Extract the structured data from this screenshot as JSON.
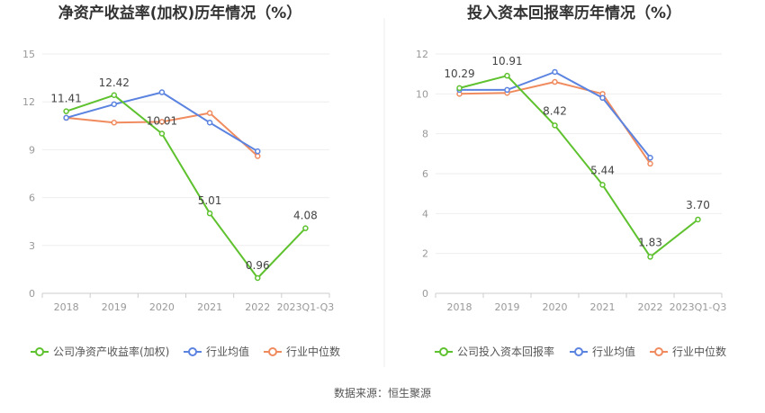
{
  "chart_data": [
    {
      "type": "line",
      "title": "净资产收益率(加权)历年情况（%）",
      "categories": [
        "2018",
        "2019",
        "2020",
        "2021",
        "2022",
        "2023Q1-Q3"
      ],
      "ylim": [
        0,
        15
      ],
      "yticks": [
        "0",
        "3",
        "6",
        "9",
        "12",
        "15"
      ],
      "series": [
        {
          "name": "公司净资产收益率(加权)",
          "color": "#5ec12e",
          "values": [
            11.41,
            12.42,
            10.01,
            5.01,
            0.96,
            4.08
          ],
          "labels": [
            "11.41",
            "12.42",
            "10.01",
            "5.01",
            "0.96",
            "4.08"
          ]
        },
        {
          "name": "行业均值",
          "color": "#5b83e0",
          "values": [
            11.0,
            11.85,
            12.6,
            10.7,
            8.9,
            null
          ]
        },
        {
          "name": "行业中位数",
          "color": "#f08b5f",
          "values": [
            11.0,
            10.7,
            10.75,
            11.3,
            8.6,
            null
          ]
        }
      ]
    },
    {
      "type": "line",
      "title": "投入资本回报率历年情况（%）",
      "categories": [
        "2018",
        "2019",
        "2020",
        "2021",
        "2022",
        "2023Q1-Q3"
      ],
      "ylim": [
        0,
        12
      ],
      "yticks": [
        "0",
        "2",
        "4",
        "6",
        "8",
        "10",
        "12"
      ],
      "series": [
        {
          "name": "公司投入资本回报率",
          "color": "#5ec12e",
          "values": [
            10.29,
            10.91,
            8.42,
            5.44,
            1.83,
            3.7
          ],
          "labels": [
            "10.29",
            "10.91",
            "8.42",
            "5.44",
            "1.83",
            "3.70"
          ]
        },
        {
          "name": "行业均值",
          "color": "#5b83e0",
          "values": [
            10.2,
            10.2,
            11.1,
            9.8,
            6.8,
            null
          ]
        },
        {
          "name": "行业中位数",
          "color": "#f08b5f",
          "values": [
            10.0,
            10.05,
            10.6,
            10.0,
            6.5,
            null
          ]
        }
      ]
    }
  ],
  "source": "数据来源：恒生聚源"
}
